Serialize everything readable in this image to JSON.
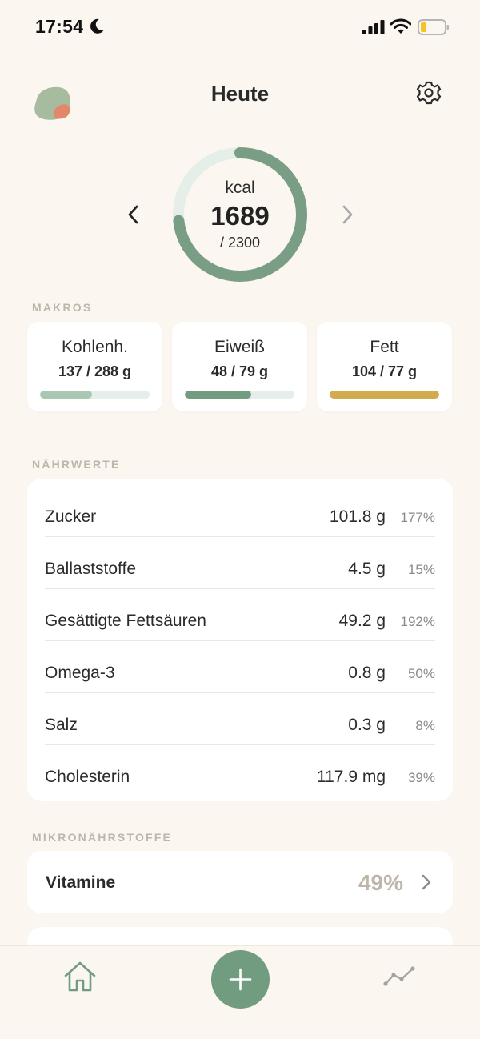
{
  "status_bar": {
    "time": "17:54"
  },
  "header": {
    "title": "Heute"
  },
  "calories": {
    "unit": "kcal",
    "value": "1689",
    "goal": "/ 2300",
    "progress": 0.734,
    "ring_color": "#7A9E85",
    "ring_track_color": "#E6EEE9"
  },
  "macros": {
    "section_label": "MAKROS",
    "items": [
      {
        "name": "Kohlenh.",
        "value": "137 / 288 g",
        "progress": 0.476,
        "color": "#A9C7B2"
      },
      {
        "name": "Eiweiß",
        "value": "48 / 79 g",
        "progress": 0.608,
        "color": "#729C7F"
      },
      {
        "name": "Fett",
        "value": "104 / 77 g",
        "progress": 1.0,
        "color": "#D1AB4E"
      }
    ]
  },
  "nutrients": {
    "section_label": "NÄHRWERTE",
    "rows": [
      {
        "name": "Zucker",
        "amount": "101.8 g",
        "percent": "177%"
      },
      {
        "name": "Ballaststoffe",
        "amount": "4.5 g",
        "percent": "15%"
      },
      {
        "name": "Gesättigte Fettsäuren",
        "amount": "49.2 g",
        "percent": "192%"
      },
      {
        "name": "Omega-3",
        "amount": "0.8 g",
        "percent": "50%"
      },
      {
        "name": "Salz",
        "amount": "0.3 g",
        "percent": "8%"
      },
      {
        "name": "Cholesterin",
        "amount": "117.9 mg",
        "percent": "39%"
      }
    ]
  },
  "micronutrients": {
    "section_label": "MIKRONÄHRSTOFFE",
    "vitamins": {
      "label": "Vitamine",
      "percent": "49%"
    }
  },
  "icons": {
    "avatar": "avatar-blob",
    "settings": "gear-icon",
    "prev": "chevron-left-icon",
    "next": "chevron-right-icon",
    "home": "home-icon",
    "add": "plus-icon",
    "stats": "line-chart-icon"
  },
  "colors": {
    "background": "#FBF7F0",
    "accent": "#729C7F",
    "muted_label": "#BDB6AB"
  }
}
